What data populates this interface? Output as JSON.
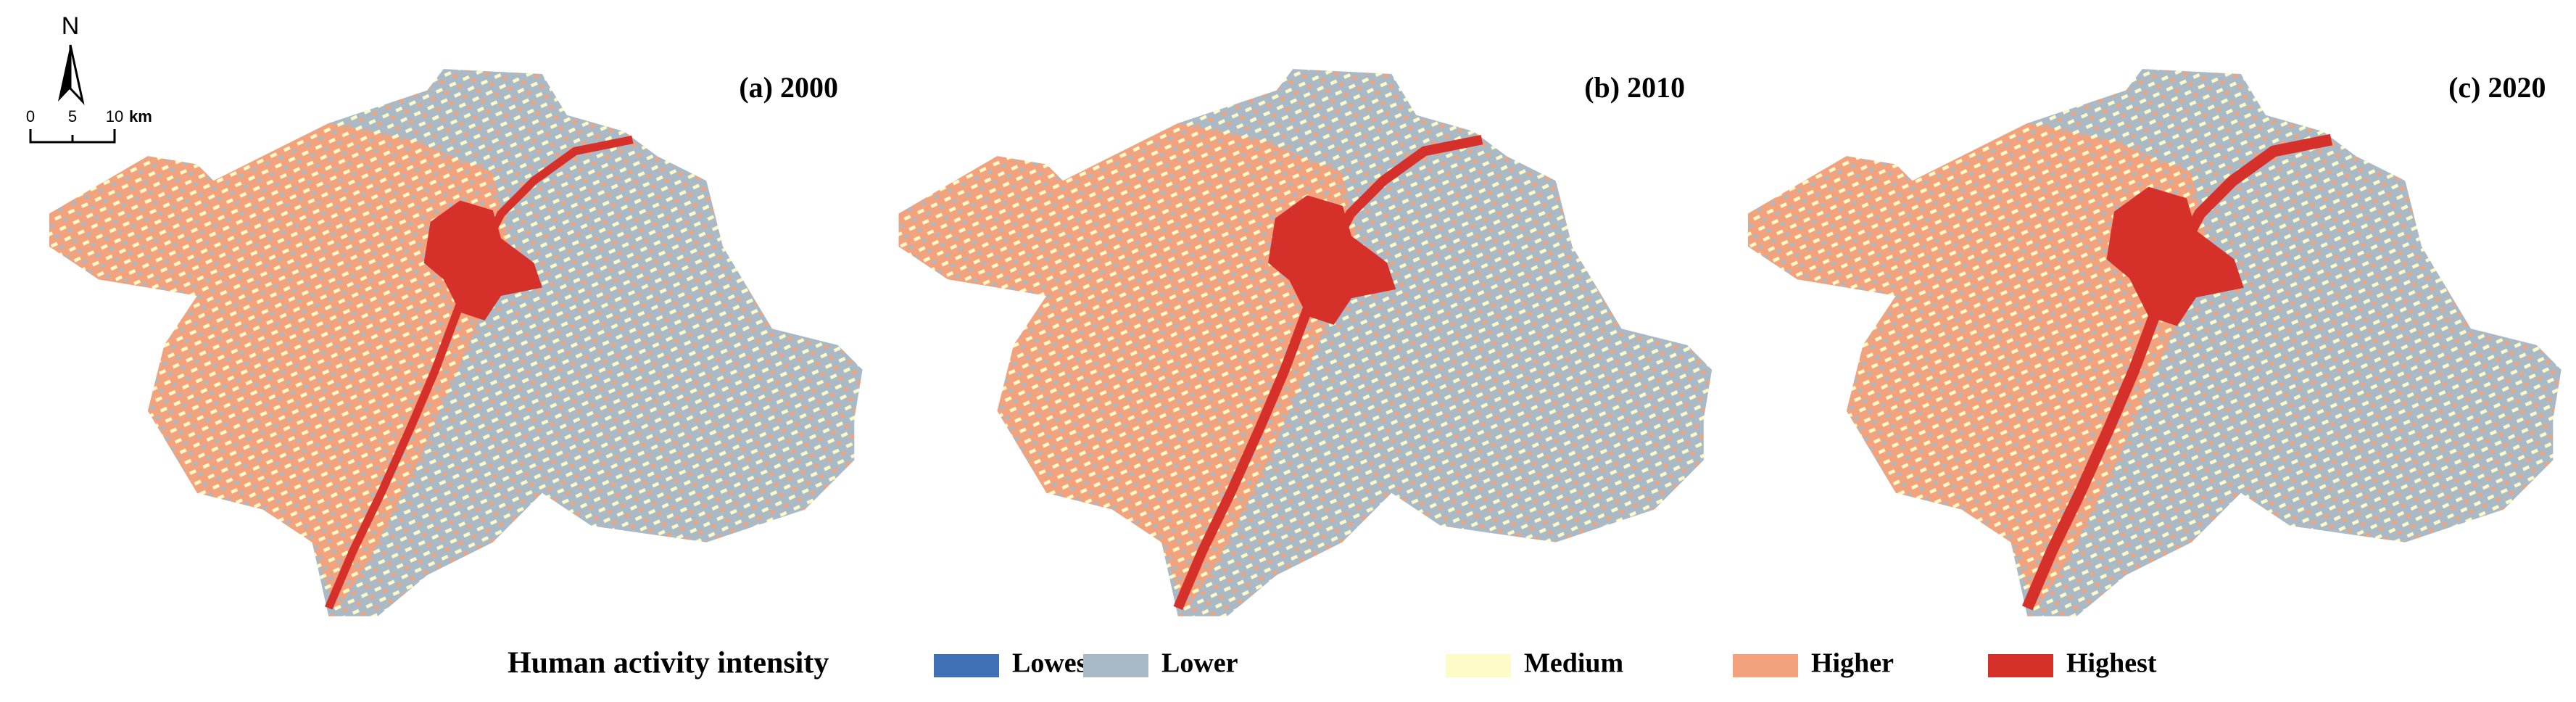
{
  "panels": [
    {
      "label": "(a) 2000"
    },
    {
      "label": "(b) 2010"
    },
    {
      "label": "(c) 2020"
    }
  ],
  "north_arrow": "N",
  "scale_bar": {
    "ticks": [
      "0",
      "5",
      "10"
    ],
    "unit": "km"
  },
  "legend": {
    "title": "Human activity intensity",
    "items": [
      {
        "label": "Lowest",
        "color": "#3f6fb5"
      },
      {
        "label": "Lower",
        "color": "#a9b9c5"
      },
      {
        "label": "Medium",
        "color": "#fdfbc8"
      },
      {
        "label": "Higher",
        "color": "#f2a27c"
      },
      {
        "label": "Highest",
        "color": "#d5302a"
      }
    ]
  }
}
